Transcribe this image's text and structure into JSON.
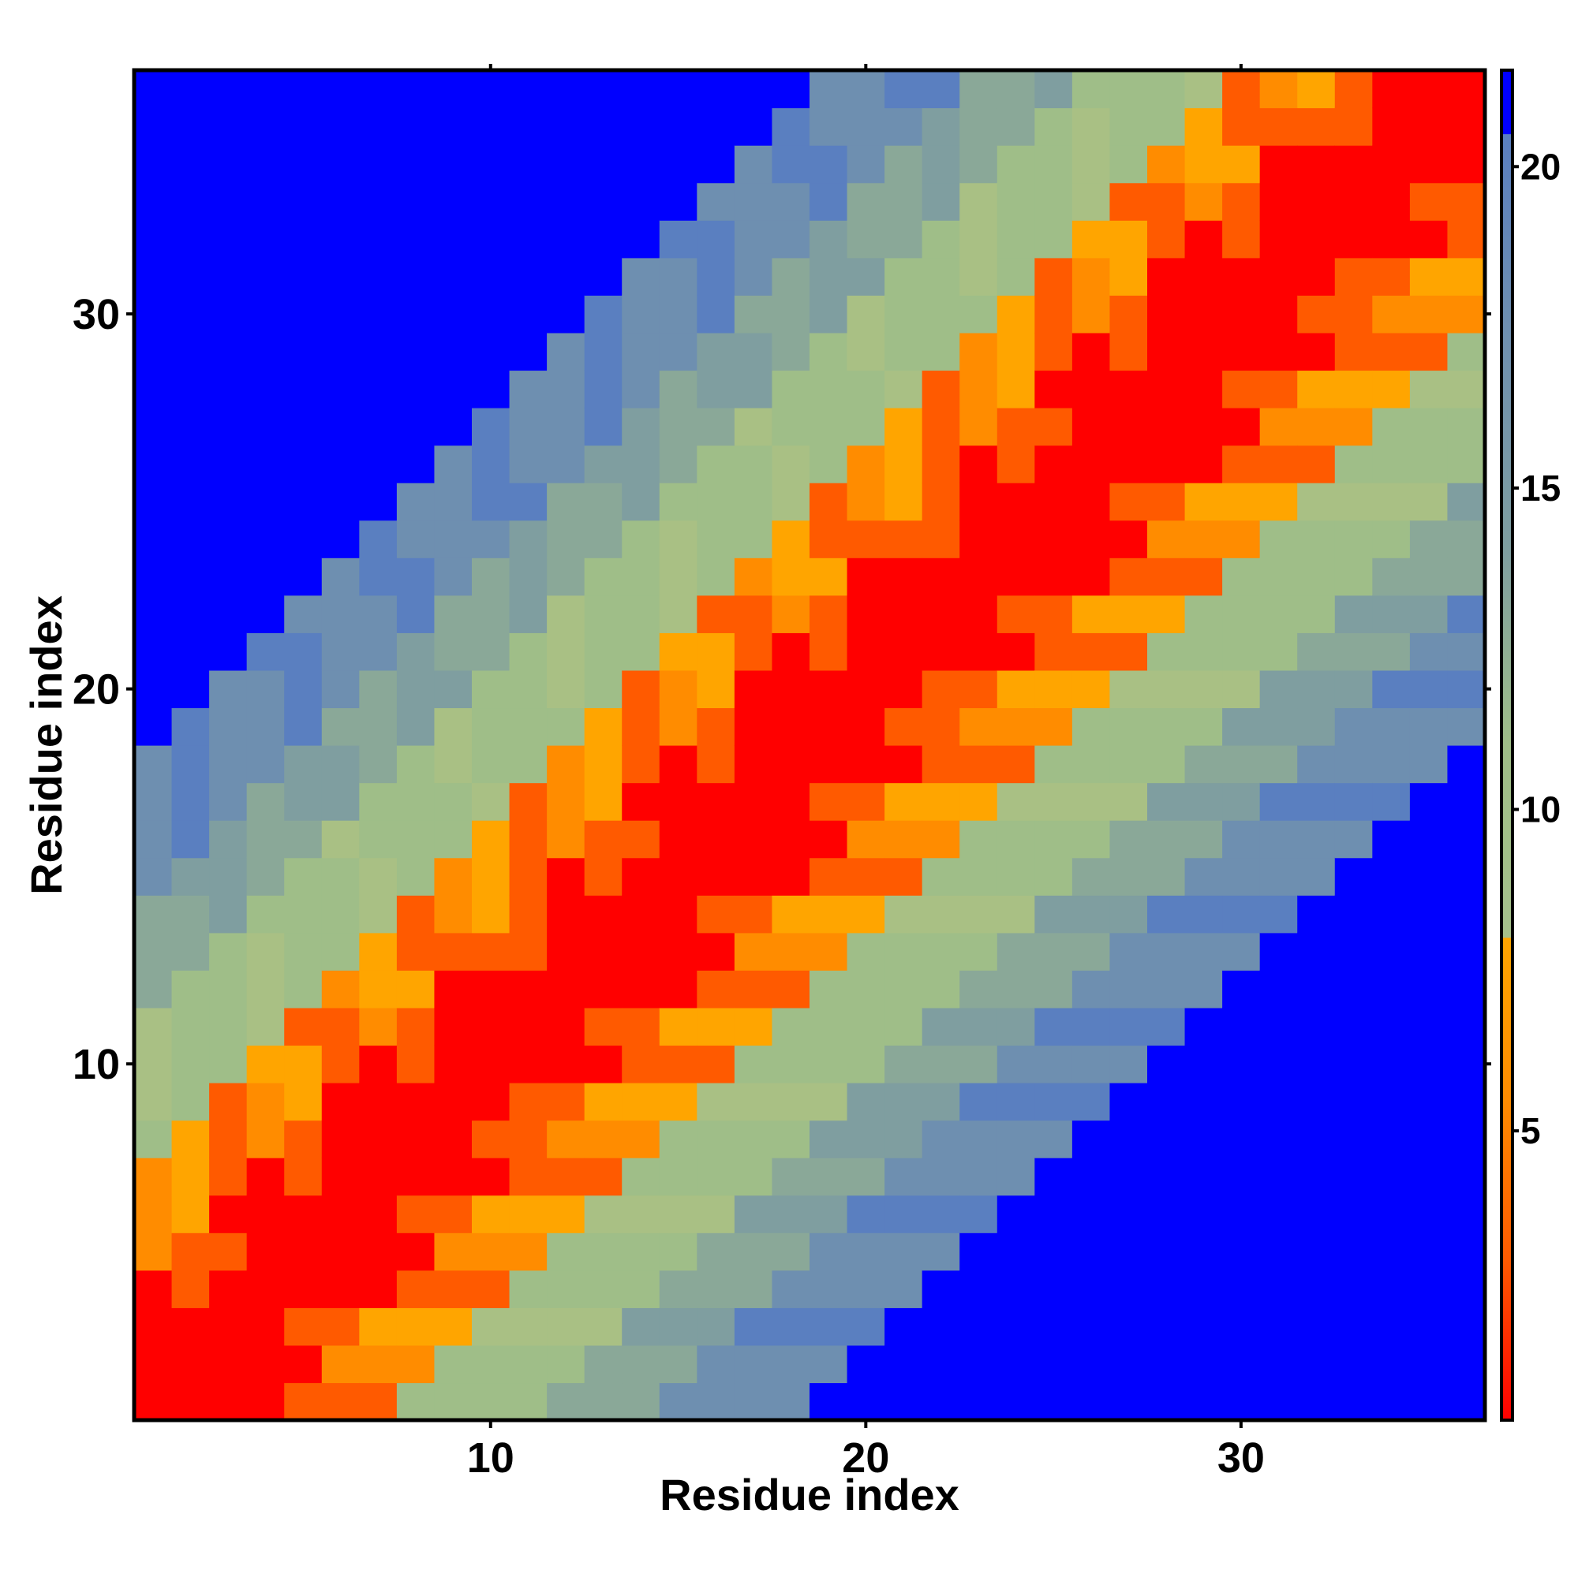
{
  "chart_data": {
    "type": "heatmap",
    "title": "",
    "xlabel": "Residue index",
    "ylabel": "Residue index",
    "n_residues": 36,
    "x_ticks": [
      10,
      20,
      30
    ],
    "y_ticks": [
      10,
      20,
      30
    ],
    "colorbar": {
      "ticks": [
        5,
        10,
        15,
        20
      ],
      "range": [
        0.5,
        21.5
      ],
      "stops": [
        {
          "v": 0.5,
          "color": "#ff0000"
        },
        {
          "v": 3.0,
          "color": "#ff5a00"
        },
        {
          "v": 5.5,
          "color": "#ff8c00"
        },
        {
          "v": 8.0,
          "color": "#ffa500"
        },
        {
          "v": 8.01,
          "color": "#a5c08a"
        },
        {
          "v": 11.0,
          "color": "#9fbe88"
        },
        {
          "v": 14.0,
          "color": "#7f9ea0"
        },
        {
          "v": 17.5,
          "color": "#6e8fb0"
        },
        {
          "v": 20.5,
          "color": "#5a7fc0"
        },
        {
          "v": 20.51,
          "color": "#0000ff"
        },
        {
          "v": 21.5,
          "color": "#0000ff"
        }
      ]
    },
    "values_description_note": "",
    "band_profile": [
      0.5,
      1.2,
      2.2,
      3.6,
      5.0,
      6.5,
      7.8,
      9.0,
      10.2,
      11.4,
      12.5,
      13.6,
      14.7,
      15.8,
      16.9,
      18.0,
      19.2,
      20.4,
      22,
      22,
      22,
      22,
      22,
      22,
      22,
      22,
      22,
      22,
      22,
      22,
      22,
      22,
      22,
      22,
      22,
      22
    ],
    "colors": {
      "near": "#ff0000",
      "mid_orange": "#ff8c00",
      "far_green": "#9fbe88",
      "far_blue_grey": "#6e8fb0",
      "beyond": "#0000ff"
    }
  }
}
